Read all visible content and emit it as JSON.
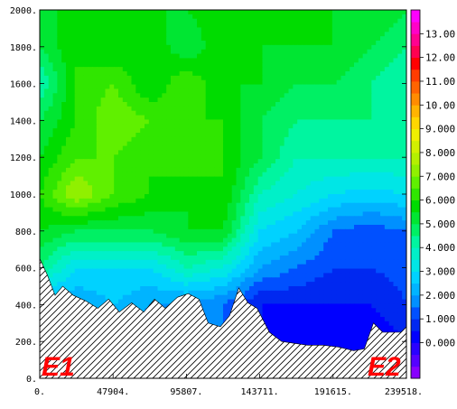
{
  "chart_data": {
    "type": "heatmap",
    "title": "",
    "xlabel": "",
    "ylabel": "",
    "xlim": [
      0,
      239518
    ],
    "ylim": [
      0,
      2000
    ],
    "x_ticks": [
      "0.",
      "47904.",
      "95807.",
      "143711.",
      "191615.",
      "239518."
    ],
    "y_ticks": [
      "0.",
      "200.",
      "400.",
      "600.",
      "800.",
      "1000.",
      "1200.",
      "1400.",
      "1600.",
      "1800.",
      "2000."
    ],
    "colorbar": {
      "labels": [
        "0.000",
        "1.000",
        "2.000",
        "3.000",
        "4.000",
        "5.000",
        "6.000",
        "7.000",
        "8.000",
        "9.000",
        "10.00",
        "11.00",
        "12.00",
        "13.00"
      ],
      "min": -1.5,
      "max": 14,
      "step": 0.5,
      "colors": [
        "#8800ff",
        "#5500ff",
        "#2a00ff",
        "#0000ff",
        "#0028f0",
        "#0050ff",
        "#0090ff",
        "#00b4ff",
        "#00d2ff",
        "#00e6e6",
        "#00f0c8",
        "#00f5a0",
        "#00f064",
        "#00e632",
        "#00dc00",
        "#30e600",
        "#60f000",
        "#90f000",
        "#b4f000",
        "#d2f000",
        "#f0f000",
        "#ffd700",
        "#ffb400",
        "#ff8c00",
        "#ff6400",
        "#ff3c00",
        "#ff0000",
        "#ff0050",
        "#ff0090",
        "#ff00c8",
        "#ff00ff"
      ]
    },
    "endpoints": [
      "E1",
      "E2"
    ],
    "terrain": {
      "x": [
        0,
        5000,
        10000,
        15000,
        22000,
        30000,
        38000,
        45000,
        52000,
        60000,
        68000,
        75000,
        82000,
        90000,
        97000,
        104000,
        110000,
        118000,
        124000,
        130000,
        136000,
        142000,
        150000,
        158000,
        166000,
        175000,
        185000,
        195000,
        205000,
        212000,
        218000,
        224000,
        230000,
        236000,
        239518
      ],
      "y": [
        650,
        560,
        450,
        500,
        450,
        420,
        380,
        430,
        360,
        410,
        360,
        430,
        380,
        440,
        460,
        430,
        300,
        280,
        340,
        490,
        410,
        380,
        250,
        200,
        190,
        180,
        180,
        170,
        150,
        160,
        300,
        250,
        250,
        250,
        280
      ]
    },
    "field": {
      "x": [
        0,
        24000,
        48000,
        72000,
        96000,
        120000,
        144000,
        168000,
        192000,
        216000,
        239518
      ],
      "y": [
        0,
        200,
        400,
        600,
        800,
        1000,
        1200,
        1400,
        1600,
        1800,
        2000
      ],
      "values": [
        [
          1.0,
          1.0,
          1.0,
          1.0,
          1.0,
          1.0,
          1.0,
          1.0,
          1.0,
          1.0,
          1.0
        ],
        [
          1.5,
          1.5,
          1.5,
          1.5,
          1.5,
          1.5,
          0.5,
          0.0,
          0.0,
          0.0,
          0.5
        ],
        [
          2.0,
          2.0,
          2.5,
          2.0,
          1.8,
          1.5,
          0.5,
          0.5,
          0.5,
          0.5,
          1.0
        ],
        [
          4.5,
          3.0,
          3.0,
          3.0,
          4.0,
          3.5,
          2.0,
          1.5,
          1.0,
          1.0,
          1.2
        ],
        [
          5.5,
          5.0,
          5.0,
          5.0,
          5.5,
          5.5,
          3.0,
          2.5,
          1.5,
          1.2,
          1.5
        ],
        [
          6.0,
          7.5,
          6.5,
          6.0,
          5.5,
          6.0,
          4.0,
          3.5,
          3.0,
          2.8,
          3.0
        ],
        [
          5.5,
          6.5,
          6.5,
          6.0,
          6.5,
          6.0,
          5.0,
          4.0,
          4.0,
          4.0,
          4.0
        ],
        [
          5.0,
          6.0,
          7.0,
          6.5,
          6.0,
          6.0,
          5.0,
          4.5,
          4.5,
          4.5,
          4.0
        ],
        [
          4.0,
          6.0,
          6.5,
          5.5,
          6.5,
          5.5,
          5.5,
          5.0,
          5.0,
          4.5,
          4.0
        ],
        [
          5.0,
          6.0,
          5.5,
          6.0,
          5.0,
          6.0,
          5.5,
          5.5,
          5.5,
          5.0,
          4.5
        ],
        [
          5.0,
          6.0,
          6.0,
          5.5,
          5.5,
          6.0,
          6.0,
          6.0,
          5.5,
          5.5,
          5.0
        ]
      ]
    }
  }
}
